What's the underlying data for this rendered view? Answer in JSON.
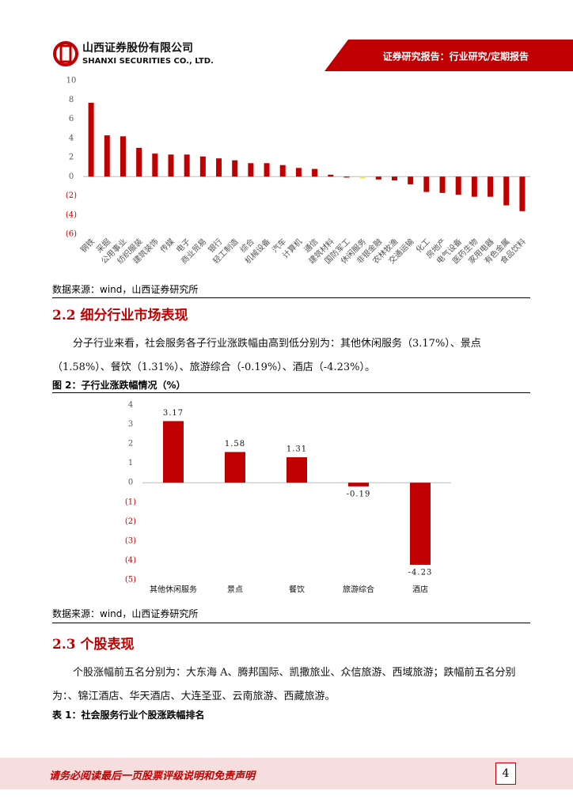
{
  "header": {
    "company": "山西证券股份有限公司",
    "company_en": "SHANXI SECURITIES CO., LTD.",
    "report_type": "证券研究报告：行业研究/定期报告"
  },
  "chart1": {
    "chart_data": {
      "type": "bar",
      "categories": [
        "钢铁",
        "采掘",
        "公用事业",
        "纺织服装",
        "建筑装饰",
        "传媒",
        "电子",
        "商业贸易",
        "银行",
        "轻工制造",
        "综合",
        "机械设备",
        "汽车",
        "计算机",
        "通信",
        "建筑材料",
        "国防军工",
        "休闲服务",
        "非银金融",
        "农林牧渔",
        "交通运输",
        "化工",
        "房地产",
        "电气设备",
        "医药生物",
        "家用电器",
        "有色金属",
        "食品饮料"
      ],
      "values": [
        7.7,
        4.3,
        4.2,
        3.0,
        2.4,
        2.3,
        2.3,
        2.1,
        1.9,
        1.7,
        1.4,
        1.4,
        1.2,
        0.9,
        0.8,
        0.2,
        -0.1,
        -0.2,
        -0.3,
        -0.4,
        -0.8,
        -1.6,
        -1.7,
        -1.9,
        -2.1,
        -2.1,
        -3.0,
        -3.6
      ],
      "colors": [
        "#c00000",
        "#c00000",
        "#c00000",
        "#c00000",
        "#c00000",
        "#c00000",
        "#c00000",
        "#c00000",
        "#c00000",
        "#c00000",
        "#c00000",
        "#c00000",
        "#c00000",
        "#c00000",
        "#c00000",
        "#c00000",
        "#c00000",
        "#f2e85c",
        "#c00000",
        "#c00000",
        "#c00000",
        "#c00000",
        "#c00000",
        "#c00000",
        "#c00000",
        "#c00000",
        "#c00000",
        "#c00000"
      ],
      "ylim": [
        -6,
        10
      ],
      "yticks": [
        10,
        8,
        6,
        4,
        2,
        0,
        {
          "value": -2,
          "label": "(2)"
        },
        {
          "value": -4,
          "label": "(4)"
        },
        {
          "value": -6,
          "label": "(6)"
        }
      ]
    }
  },
  "source1": "数据来源：wind，山西证券研究所",
  "section22": {
    "heading": "2.2 细分行业市场表现",
    "paragraph": "分子行业来看，社会服务各子行业涨跌幅由高到低分别为：其他休闲服务（3.17%）、景点（1.58%）、餐饮（1.31%）、旅游综合（-0.19%）、酒店（-4.23%）。",
    "figure_caption": "图 2：子行业涨跌幅情况（%）"
  },
  "chart2": {
    "chart_data": {
      "type": "bar",
      "categories": [
        "其他休闲服务",
        "景点",
        "餐饮",
        "旅游综合",
        "酒店"
      ],
      "values": [
        3.17,
        1.58,
        1.31,
        -0.19,
        -4.23
      ],
      "color": "#c00000",
      "ylim": [
        -5,
        4
      ],
      "yticks": [
        4,
        3,
        2,
        1,
        0,
        {
          "value": -1,
          "label": "(1)"
        },
        {
          "value": -2,
          "label": "(2)"
        },
        {
          "value": -3,
          "label": "(3)"
        },
        {
          "value": -4,
          "label": "(4)"
        },
        {
          "value": -5,
          "label": "(5)"
        }
      ]
    }
  },
  "source2": "数据来源：wind，山西证券研究所",
  "section23": {
    "heading": "2.3 个股表现",
    "paragraph": "个股涨幅前五名分别为：大东海 A、腾邦国际、凯撒旅业、众信旅游、西域旅游；跌幅前五名分别为：、锦江酒店、华天酒店、大连圣亚、云南旅游、西藏旅游。",
    "table_caption": "表 1：社会服务行业个股涨跌幅排名"
  },
  "footer": {
    "disclaimer": "请务必阅读最后一页股票评级说明和免责声明",
    "page": "4"
  }
}
